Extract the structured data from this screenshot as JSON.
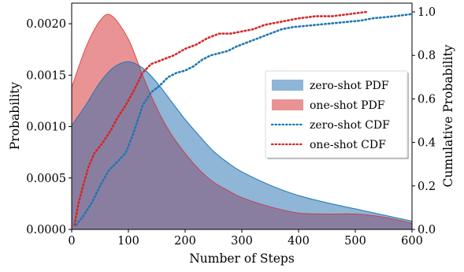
{
  "chart_data": {
    "type": "area",
    "xlabel": "Number of Steps",
    "ylabel_left": "Probability",
    "ylabel_right": "Cumulative Probability",
    "xlim": [
      0,
      600
    ],
    "ylim_left": [
      0,
      0.0022
    ],
    "ylim_right": [
      0,
      1.04
    ],
    "grid": false,
    "legend_position": "center-right",
    "xticks": [
      "0",
      "100",
      "200",
      "300",
      "400",
      "500",
      "600"
    ],
    "yticks_left": [
      "0.0000",
      "0.0005",
      "0.0010",
      "0.0015",
      "0.0020"
    ],
    "yticks_right": [
      "0.0",
      "0.2",
      "0.4",
      "0.6",
      "0.8",
      "1.0"
    ],
    "colors": {
      "zero_shot": "#1f77b4",
      "one_shot": "#d62728",
      "zero_fill": "#8fb5d7",
      "one_fill": "#e99394",
      "overlap_fill": "#8a7ea0"
    },
    "legend": [
      {
        "key": "zero_pdf",
        "label": "zero-shot PDF"
      },
      {
        "key": "one_pdf",
        "label": "one-shot PDF"
      },
      {
        "key": "zero_cdf",
        "label": "zero-shot CDF"
      },
      {
        "key": "one_cdf",
        "label": "one-shot CDF"
      }
    ],
    "series": [
      {
        "name": "zero-shot PDF",
        "axis": "left",
        "x": [
          0,
          25,
          50,
          75,
          100,
          125,
          150,
          175,
          200,
          225,
          250,
          275,
          300,
          350,
          400,
          450,
          500,
          550,
          600
        ],
        "values": [
          0.00101,
          0.00121,
          0.00143,
          0.00158,
          0.00163,
          0.00157,
          0.00143,
          0.00125,
          0.00107,
          0.00091,
          0.00076,
          0.00065,
          0.00056,
          0.00043,
          0.00033,
          0.00026,
          0.0002,
          0.00014,
          8e-05
        ]
      },
      {
        "name": "one-shot PDF",
        "axis": "left",
        "x": [
          0,
          25,
          50,
          70,
          100,
          125,
          150,
          175,
          200,
          225,
          250,
          275,
          300,
          350,
          400,
          450,
          500,
          550,
          600
        ],
        "values": [
          0.00138,
          0.00177,
          0.00203,
          0.00208,
          0.00185,
          0.0015,
          0.00118,
          0.00093,
          0.00074,
          0.00058,
          0.00046,
          0.00038,
          0.00031,
          0.00022,
          0.00016,
          0.00015,
          0.00015,
          0.00012,
          6e-05
        ]
      },
      {
        "name": "zero-shot CDF",
        "axis": "right",
        "x": [
          8,
          20,
          35,
          50,
          65,
          80,
          95,
          110,
          125,
          140,
          155,
          170,
          185,
          200,
          215,
          230,
          245,
          260,
          275,
          290,
          310,
          330,
          350,
          370,
          390,
          410,
          430,
          450,
          470,
          490,
          510,
          530,
          550,
          570,
          600
        ],
        "values": [
          0.02,
          0.06,
          0.12,
          0.2,
          0.27,
          0.31,
          0.35,
          0.45,
          0.57,
          0.63,
          0.66,
          0.7,
          0.72,
          0.73,
          0.75,
          0.78,
          0.8,
          0.81,
          0.82,
          0.84,
          0.86,
          0.88,
          0.9,
          0.92,
          0.93,
          0.935,
          0.94,
          0.945,
          0.95,
          0.955,
          0.96,
          0.97,
          0.975,
          0.98,
          0.99
        ]
      },
      {
        "name": "one-shot CDF",
        "axis": "right",
        "x": [
          5,
          12,
          20,
          30,
          40,
          55,
          70,
          80,
          95,
          110,
          125,
          140,
          160,
          180,
          200,
          220,
          240,
          260,
          280,
          300,
          320,
          340,
          360,
          380,
          400,
          430,
          460,
          490,
          520
        ],
        "values": [
          0.02,
          0.12,
          0.2,
          0.29,
          0.35,
          0.4,
          0.46,
          0.51,
          0.57,
          0.64,
          0.72,
          0.76,
          0.78,
          0.8,
          0.83,
          0.85,
          0.88,
          0.9,
          0.9,
          0.91,
          0.92,
          0.94,
          0.95,
          0.96,
          0.97,
          0.98,
          0.98,
          0.99,
          1.0
        ]
      }
    ]
  }
}
